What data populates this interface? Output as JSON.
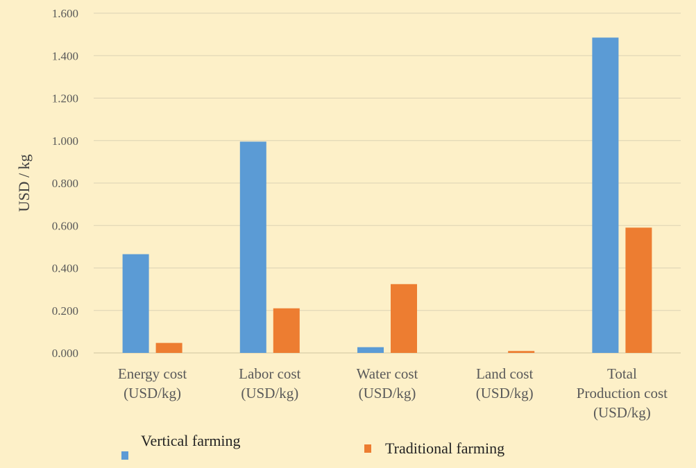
{
  "chart_data": {
    "type": "bar",
    "title": "",
    "xlabel": "",
    "ylabel": "USD / kg",
    "ylim": [
      0,
      1.6
    ],
    "yticks": [
      "0.000",
      "0.200",
      "0.400",
      "0.600",
      "0.800",
      "1.000",
      "1.200",
      "1.400",
      "1.600"
    ],
    "ytick_values": [
      0,
      0.2,
      0.4,
      0.6,
      0.8,
      1.0,
      1.2,
      1.4,
      1.6
    ],
    "categories": [
      [
        "Energy cost",
        "(USD/kg)"
      ],
      [
        "Labor cost",
        "(USD/kg)"
      ],
      [
        "Water cost",
        "(USD/kg)"
      ],
      [
        "Land cost",
        "(USD/kg)"
      ],
      [
        "Total",
        "Production cost",
        "(USD/kg)"
      ]
    ],
    "series": [
      {
        "name": "Vertical farming",
        "color": "#5b9bd5",
        "values": [
          0.465,
          0.995,
          0.027,
          0.0,
          1.485
        ]
      },
      {
        "name": "Traditional farming",
        "color": "#ed7d31",
        "values": [
          0.047,
          0.21,
          0.324,
          0.009,
          0.59
        ]
      }
    ],
    "grid": true,
    "legend": "bottom"
  }
}
